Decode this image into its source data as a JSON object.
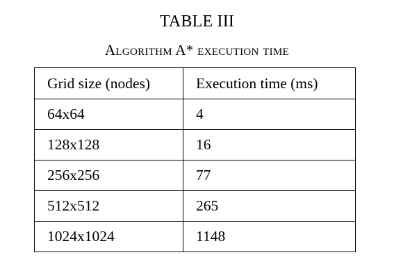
{
  "table": {
    "number": "TABLE III",
    "caption": "Algorithm A* execution time",
    "headers": [
      "Grid size (nodes)",
      "Execution time (ms)"
    ],
    "rows": [
      [
        "64x64",
        "4"
      ],
      [
        "128x128",
        "16"
      ],
      [
        "256x256",
        "77"
      ],
      [
        "512x512",
        "265"
      ],
      [
        "1024x1024",
        "1148"
      ]
    ]
  }
}
